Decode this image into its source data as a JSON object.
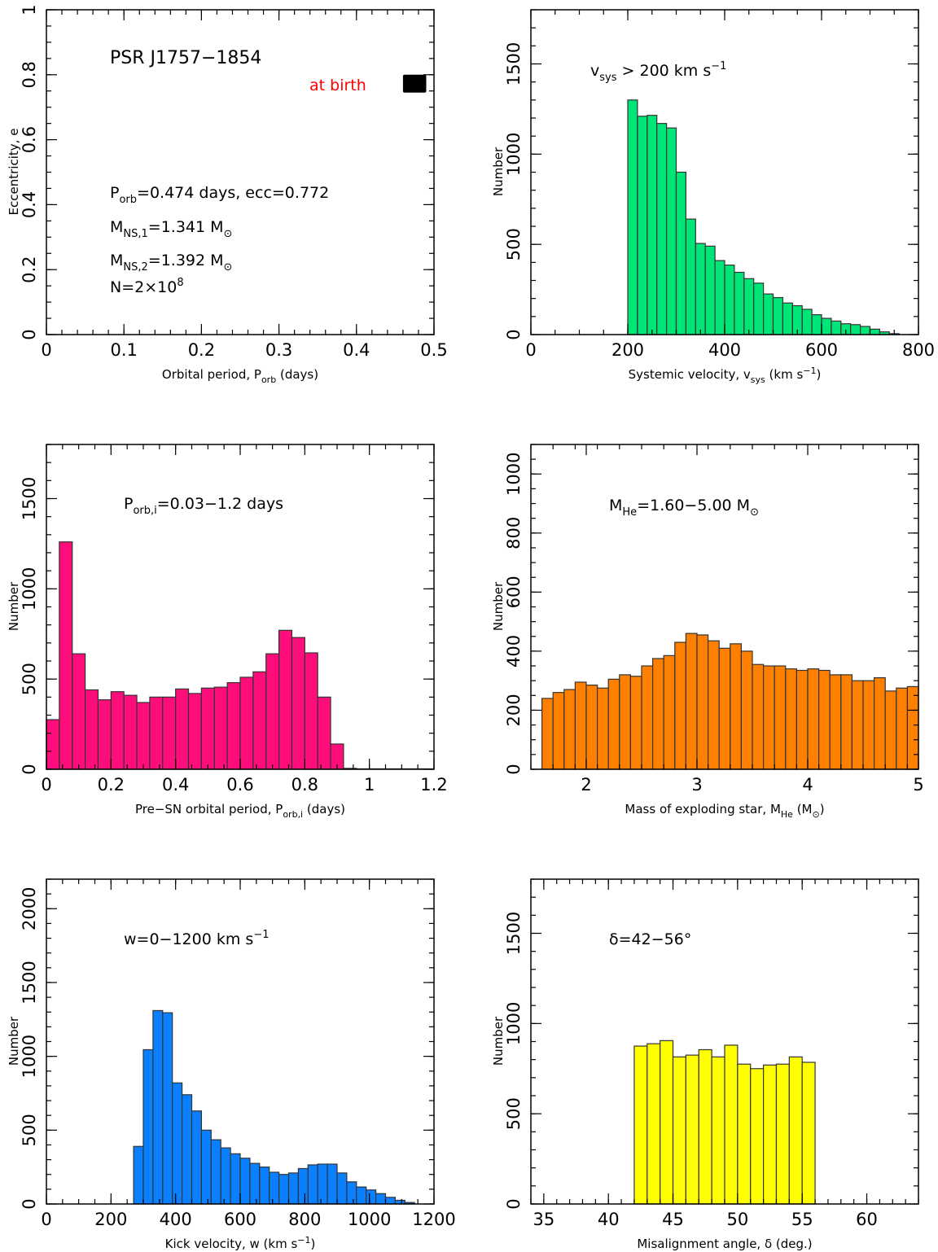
{
  "chart_data": [
    {
      "id": "p1",
      "type": "scatter",
      "title": "PSR J1757−1854",
      "xlabel": "Orbital period, P_orb  (days)",
      "ylabel": "Eccentricity, e",
      "xlim": [
        0,
        0.5
      ],
      "ylim": [
        0,
        1
      ],
      "x_ticks": [
        "0",
        "0.1",
        "0.2",
        "0.3",
        "0.4",
        "0.5"
      ],
      "y_ticks": [
        "0",
        "0.2",
        "0.4",
        "0.6",
        "0.8",
        "1"
      ],
      "marker_label": "at birth",
      "marker_color": "#ff0000",
      "marker": {
        "x_range": [
          0.46,
          0.49
        ],
        "y_range": [
          0.745,
          0.8
        ]
      },
      "annotations": {
        "line1": "P_orb=0.474 days,   ecc=0.772",
        "line2": "M_NS,1=1.341 M_⊙",
        "line3": "M_NS,2=1.392 M_⊙",
        "line4": "N=2×10^8"
      }
    },
    {
      "id": "p2",
      "type": "bar",
      "color": "#00e676",
      "xlabel": "Systemic velocity, v_sys  (km s^-1)",
      "ylabel": "Number",
      "annotation": "v_sys > 200 km s^-1",
      "xlim": [
        0,
        800
      ],
      "ylim": [
        0,
        1800
      ],
      "x_ticks": [
        "0",
        "200",
        "400",
        "600",
        "800"
      ],
      "y_ticks": [
        "0",
        "500",
        "1000",
        "1500"
      ],
      "bin_start": 200,
      "bin_width": 20,
      "values": [
        1300,
        1210,
        1215,
        1170,
        1145,
        900,
        640,
        505,
        490,
        410,
        385,
        345,
        310,
        285,
        225,
        205,
        175,
        160,
        140,
        110,
        90,
        75,
        60,
        55,
        45,
        30,
        15,
        5
      ]
    },
    {
      "id": "p3",
      "type": "bar",
      "color": "#ff0d7a",
      "xlabel": "Pre-SN orbital period, P_orb,i  (days)",
      "ylabel": "Number",
      "annotation": "P_orb,i=0.03−1.2 days",
      "xlim": [
        0,
        1.2
      ],
      "ylim": [
        0,
        1800
      ],
      "x_ticks": [
        "0",
        "0.2",
        "0.4",
        "0.6",
        "0.8",
        "1",
        "1.2"
      ],
      "y_ticks": [
        "0",
        "500",
        "1000",
        "1500"
      ],
      "bin_start": 0.0,
      "bin_width": 0.04,
      "values": [
        275,
        1260,
        640,
        440,
        385,
        430,
        410,
        370,
        400,
        400,
        445,
        420,
        450,
        455,
        480,
        510,
        540,
        640,
        770,
        730,
        645,
        400,
        140,
        5,
        0,
        0,
        0,
        0,
        0,
        0
      ]
    },
    {
      "id": "p4",
      "type": "bar",
      "color": "#ff8000",
      "xlabel": "Mass of exploding star, M_He  (M_⊙)",
      "ylabel": "Number",
      "annotation": "M_He=1.60−5.00 M_⊙",
      "xlim": [
        1.5,
        5
      ],
      "ylim": [
        0,
        1100
      ],
      "x_ticks": [
        "2",
        "3",
        "4",
        "5"
      ],
      "y_ticks": [
        "0",
        "200",
        "400",
        "600",
        "800",
        "1000"
      ],
      "bin_start": 1.6,
      "bin_width": 0.1,
      "values": [
        240,
        260,
        270,
        295,
        285,
        275,
        305,
        320,
        315,
        350,
        375,
        385,
        430,
        460,
        455,
        435,
        410,
        425,
        400,
        355,
        350,
        350,
        340,
        335,
        340,
        335,
        320,
        320,
        300,
        300,
        310,
        265,
        275,
        280
      ]
    },
    {
      "id": "p5",
      "type": "bar",
      "color": "#0a80ff",
      "xlabel": "Kick velocity, w  (km s^-1)",
      "ylabel": "Number",
      "annotation": "w=0−1200 km s^-1",
      "xlim": [
        0,
        1200
      ],
      "ylim": [
        0,
        2200
      ],
      "x_ticks": [
        "0",
        "200",
        "400",
        "600",
        "800",
        "1000",
        "1200"
      ],
      "y_ticks": [
        "0",
        "500",
        "1000",
        "1500",
        "2000"
      ],
      "bin_start": 270,
      "bin_width": 30,
      "values": [
        390,
        1045,
        1310,
        1295,
        820,
        740,
        630,
        500,
        435,
        380,
        340,
        310,
        275,
        250,
        215,
        200,
        210,
        240,
        265,
        270,
        270,
        210,
        150,
        115,
        95,
        70,
        45,
        25,
        10
      ]
    },
    {
      "id": "p6",
      "type": "bar",
      "color": "#ffff00",
      "xlabel": "Misalignment angle, δ  (deg.)",
      "ylabel": "Number",
      "annotation": "δ=42−56°",
      "xlim": [
        34,
        64
      ],
      "ylim": [
        0,
        1800
      ],
      "x_ticks": [
        "35",
        "40",
        "45",
        "50",
        "55",
        "60"
      ],
      "y_ticks": [
        "0",
        "500",
        "1000",
        "1500"
      ],
      "bin_start": 42,
      "bin_width": 1,
      "values": [
        875,
        888,
        905,
        815,
        825,
        855,
        815,
        880,
        775,
        750,
        770,
        775,
        815,
        785
      ]
    }
  ]
}
